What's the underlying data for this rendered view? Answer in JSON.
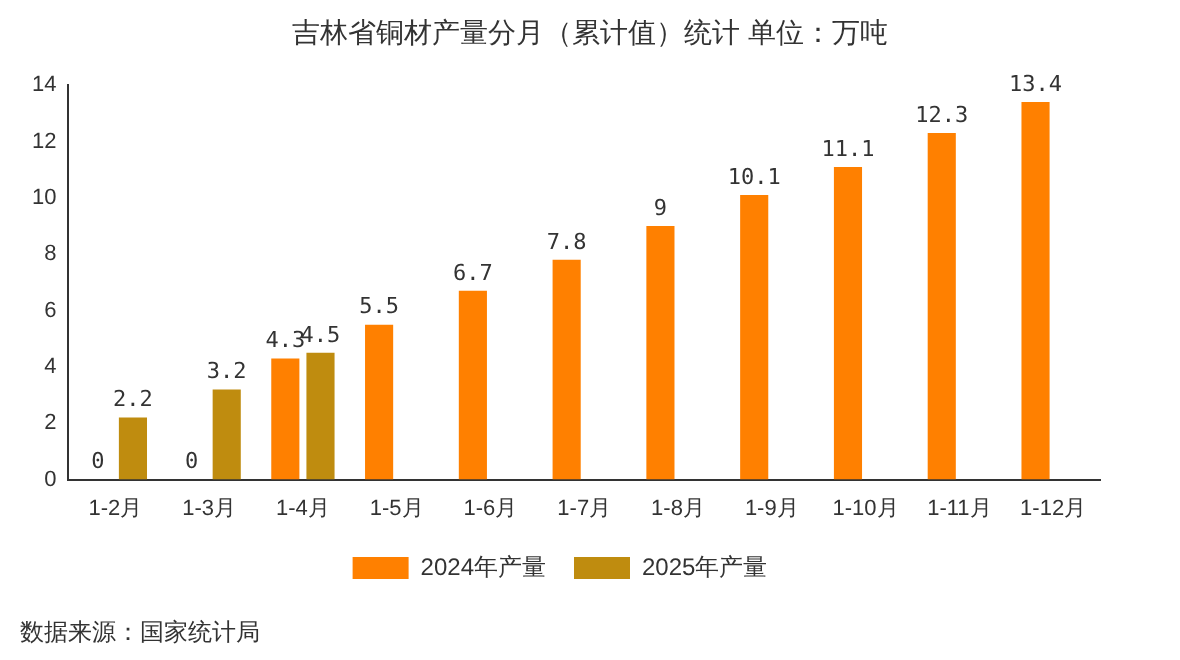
{
  "chart_data": {
    "type": "bar",
    "title": "吉林省铜材产量分月（累计值）统计 单位：万吨",
    "categories": [
      "1-2月",
      "1-3月",
      "1-4月",
      "1-5月",
      "1-6月",
      "1-7月",
      "1-8月",
      "1-9月",
      "1-10月",
      "1-11月",
      "1-12月"
    ],
    "series": [
      {
        "name": "2024年产量",
        "color": "#ff8000",
        "values": [
          0,
          0,
          4.3,
          5.5,
          6.7,
          7.8,
          9,
          10.1,
          11.1,
          12.3,
          13.4
        ]
      },
      {
        "name": "2025年产量",
        "color": "#bf8c0f",
        "values": [
          2.2,
          3.2,
          4.5,
          null,
          null,
          null,
          null,
          null,
          null,
          null,
          null
        ]
      }
    ],
    "ylim": [
      0,
      14
    ],
    "yticks": [
      0,
      2,
      4,
      6,
      8,
      10,
      12,
      14
    ],
    "grid": false,
    "legend": "bottom",
    "data_labels": true,
    "annotations": [
      "数据来源：国家统计局"
    ]
  }
}
